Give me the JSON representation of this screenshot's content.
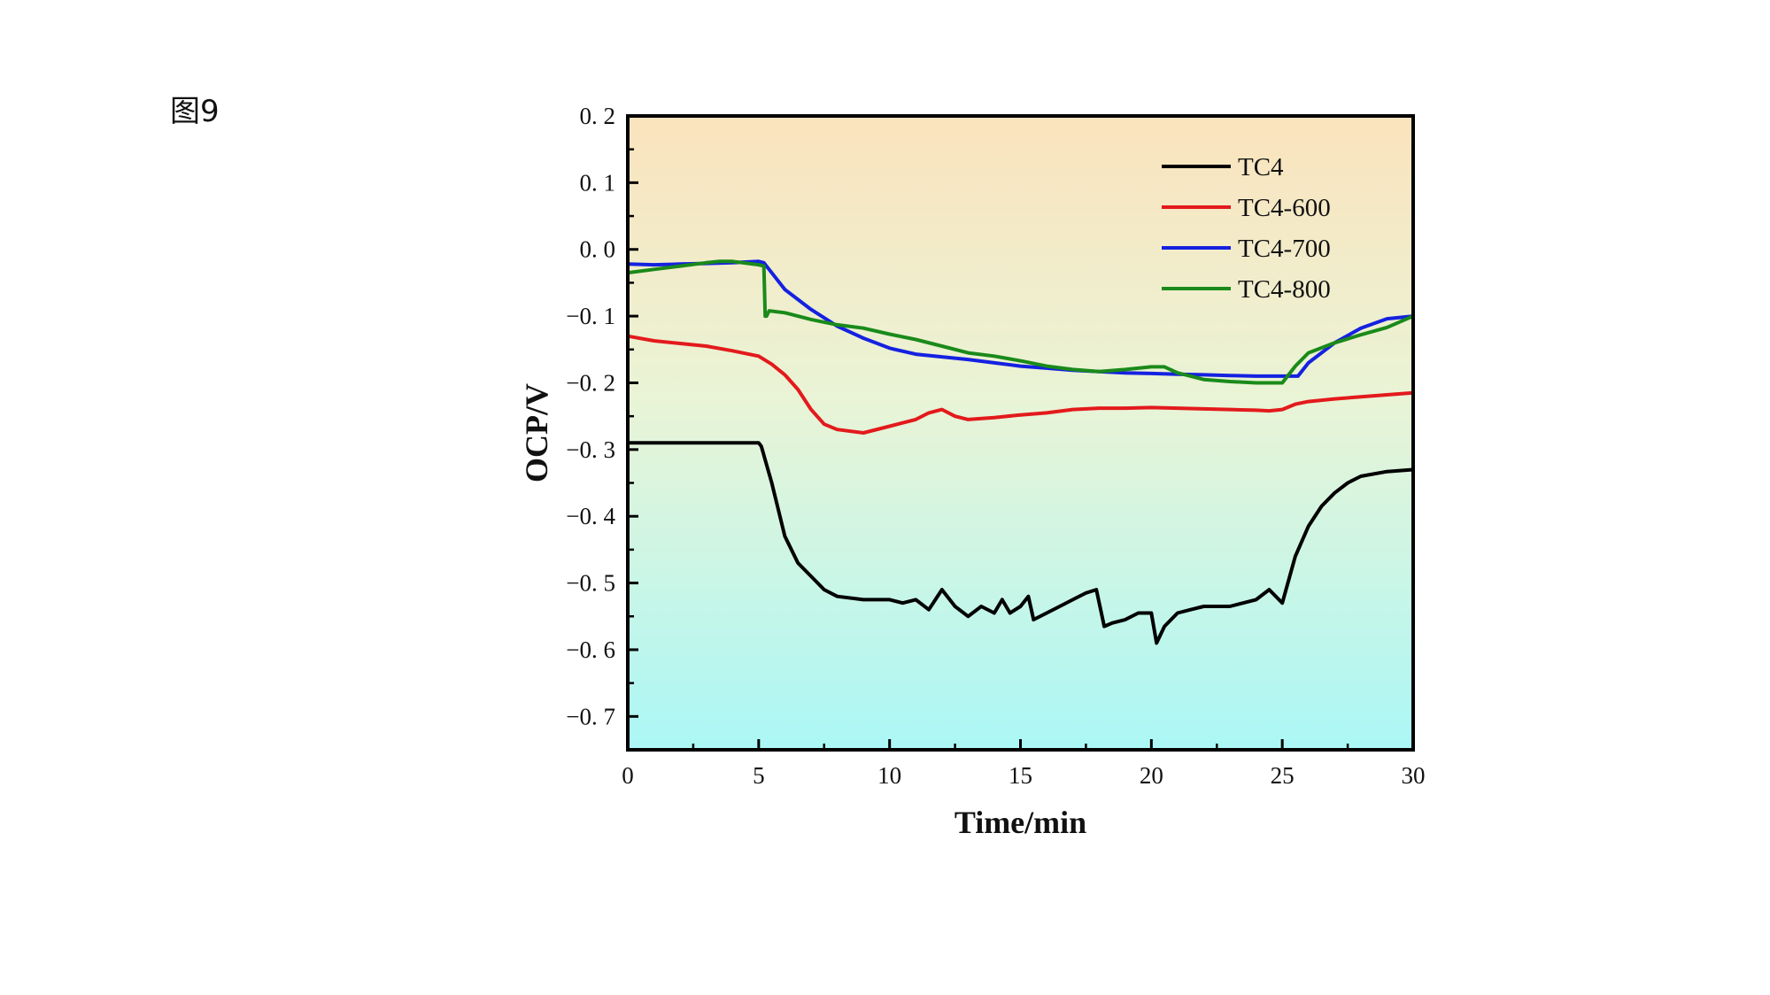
{
  "figure_label": "图9",
  "chart_data": {
    "type": "line",
    "title": "",
    "xlabel": "Time/min",
    "ylabel": "OCP/V",
    "xlim": [
      0,
      30
    ],
    "ylim": [
      -0.75,
      0.2
    ],
    "x_ticks": [
      "0",
      "5",
      "10",
      "15",
      "20",
      "25",
      "30"
    ],
    "y_ticks": [
      "0. 2",
      "0. 1",
      "0. 0",
      "−0. 1",
      "−0. 2",
      "−0. 3",
      "−0. 4",
      "−0. 5",
      "−0. 6",
      "−0. 7"
    ],
    "x_tick_values": [
      0,
      5,
      10,
      15,
      20,
      25,
      30
    ],
    "y_tick_values": [
      0.2,
      0.1,
      0.0,
      -0.1,
      -0.2,
      -0.3,
      -0.4,
      -0.5,
      -0.6,
      -0.7
    ],
    "background_gradient": {
      "top": "#fbe3bd",
      "middle": "#e9f4d6",
      "bottom": "#abf7f6"
    },
    "legend_position": "top-right",
    "grid": false,
    "series": [
      {
        "name": "TC4",
        "color": "#000000",
        "x": [
          0,
          1,
          2,
          3,
          4,
          5,
          5.1,
          5.5,
          6,
          6.5,
          7,
          7.5,
          8,
          9,
          10,
          10.5,
          11,
          11.5,
          12,
          12.5,
          13,
          13.5,
          14,
          14.3,
          14.6,
          15,
          15.3,
          15.5,
          16,
          16.5,
          17,
          17.5,
          17.9,
          18.2,
          18.5,
          19,
          19.5,
          20,
          20.2,
          20.5,
          21,
          21.5,
          22,
          23,
          24,
          24.5,
          25,
          25.5,
          26,
          26.5,
          27,
          27.5,
          28,
          29,
          30
        ],
        "y": [
          -0.29,
          -0.29,
          -0.29,
          -0.29,
          -0.29,
          -0.29,
          -0.295,
          -0.35,
          -0.43,
          -0.47,
          -0.49,
          -0.51,
          -0.52,
          -0.525,
          -0.525,
          -0.53,
          -0.525,
          -0.54,
          -0.51,
          -0.535,
          -0.55,
          -0.535,
          -0.545,
          -0.525,
          -0.545,
          -0.535,
          -0.52,
          -0.555,
          -0.545,
          -0.535,
          -0.525,
          -0.515,
          -0.51,
          -0.565,
          -0.56,
          -0.555,
          -0.545,
          -0.545,
          -0.59,
          -0.565,
          -0.545,
          -0.54,
          -0.535,
          -0.535,
          -0.525,
          -0.51,
          -0.53,
          -0.46,
          -0.415,
          -0.385,
          -0.365,
          -0.35,
          -0.34,
          -0.333,
          -0.33
        ]
      },
      {
        "name": "TC4-600",
        "color": "#e31a1c",
        "x": [
          0,
          1,
          2,
          3,
          4,
          5,
          5.5,
          6,
          6.5,
          7,
          7.5,
          8,
          9,
          10,
          11,
          11.5,
          12,
          12.5,
          13,
          14,
          15,
          16,
          17,
          18,
          19,
          20,
          21,
          22,
          23,
          24,
          24.5,
          25,
          25.5,
          26,
          27,
          28,
          29,
          30
        ],
        "y": [
          -0.13,
          -0.137,
          -0.141,
          -0.145,
          -0.152,
          -0.16,
          -0.172,
          -0.188,
          -0.21,
          -0.24,
          -0.262,
          -0.27,
          -0.275,
          -0.265,
          -0.255,
          -0.245,
          -0.24,
          -0.25,
          -0.255,
          -0.252,
          -0.248,
          -0.245,
          -0.24,
          -0.238,
          -0.238,
          -0.237,
          -0.238,
          -0.239,
          -0.24,
          -0.241,
          -0.242,
          -0.24,
          -0.232,
          -0.228,
          -0.224,
          -0.221,
          -0.218,
          -0.215
        ]
      },
      {
        "name": "TC4-700",
        "color": "#1521e0",
        "x": [
          0,
          1,
          2,
          3,
          4,
          5,
          5.2,
          6,
          7,
          8,
          9,
          10,
          11,
          12,
          13,
          14,
          15,
          16,
          17,
          18,
          19,
          20,
          21,
          22,
          23,
          24,
          24.5,
          25,
          25.6,
          26,
          27,
          28,
          29,
          30
        ],
        "y": [
          -0.022,
          -0.023,
          -0.022,
          -0.021,
          -0.02,
          -0.018,
          -0.02,
          -0.06,
          -0.09,
          -0.115,
          -0.133,
          -0.148,
          -0.157,
          -0.161,
          -0.165,
          -0.17,
          -0.175,
          -0.178,
          -0.181,
          -0.183,
          -0.185,
          -0.186,
          -0.187,
          -0.188,
          -0.189,
          -0.19,
          -0.19,
          -0.19,
          -0.19,
          -0.17,
          -0.14,
          -0.118,
          -0.104,
          -0.1
        ]
      },
      {
        "name": "TC4-800",
        "color": "#1a8a1a",
        "x": [
          0,
          1,
          2,
          3,
          3.5,
          4,
          5,
          5.2,
          5.25,
          5.3,
          5.4,
          6,
          7,
          8,
          9,
          10,
          11,
          12,
          13,
          14,
          15,
          16,
          17,
          18,
          19,
          20,
          20.5,
          21,
          22,
          23,
          24,
          25,
          25.5,
          26,
          27,
          28,
          29,
          30
        ],
        "y": [
          -0.035,
          -0.03,
          -0.025,
          -0.02,
          -0.018,
          -0.018,
          -0.023,
          -0.025,
          -0.1,
          -0.1,
          -0.092,
          -0.095,
          -0.105,
          -0.113,
          -0.118,
          -0.127,
          -0.135,
          -0.145,
          -0.155,
          -0.16,
          -0.167,
          -0.175,
          -0.18,
          -0.183,
          -0.18,
          -0.176,
          -0.176,
          -0.185,
          -0.195,
          -0.198,
          -0.2,
          -0.2,
          -0.175,
          -0.155,
          -0.14,
          -0.128,
          -0.117,
          -0.1
        ]
      }
    ]
  }
}
